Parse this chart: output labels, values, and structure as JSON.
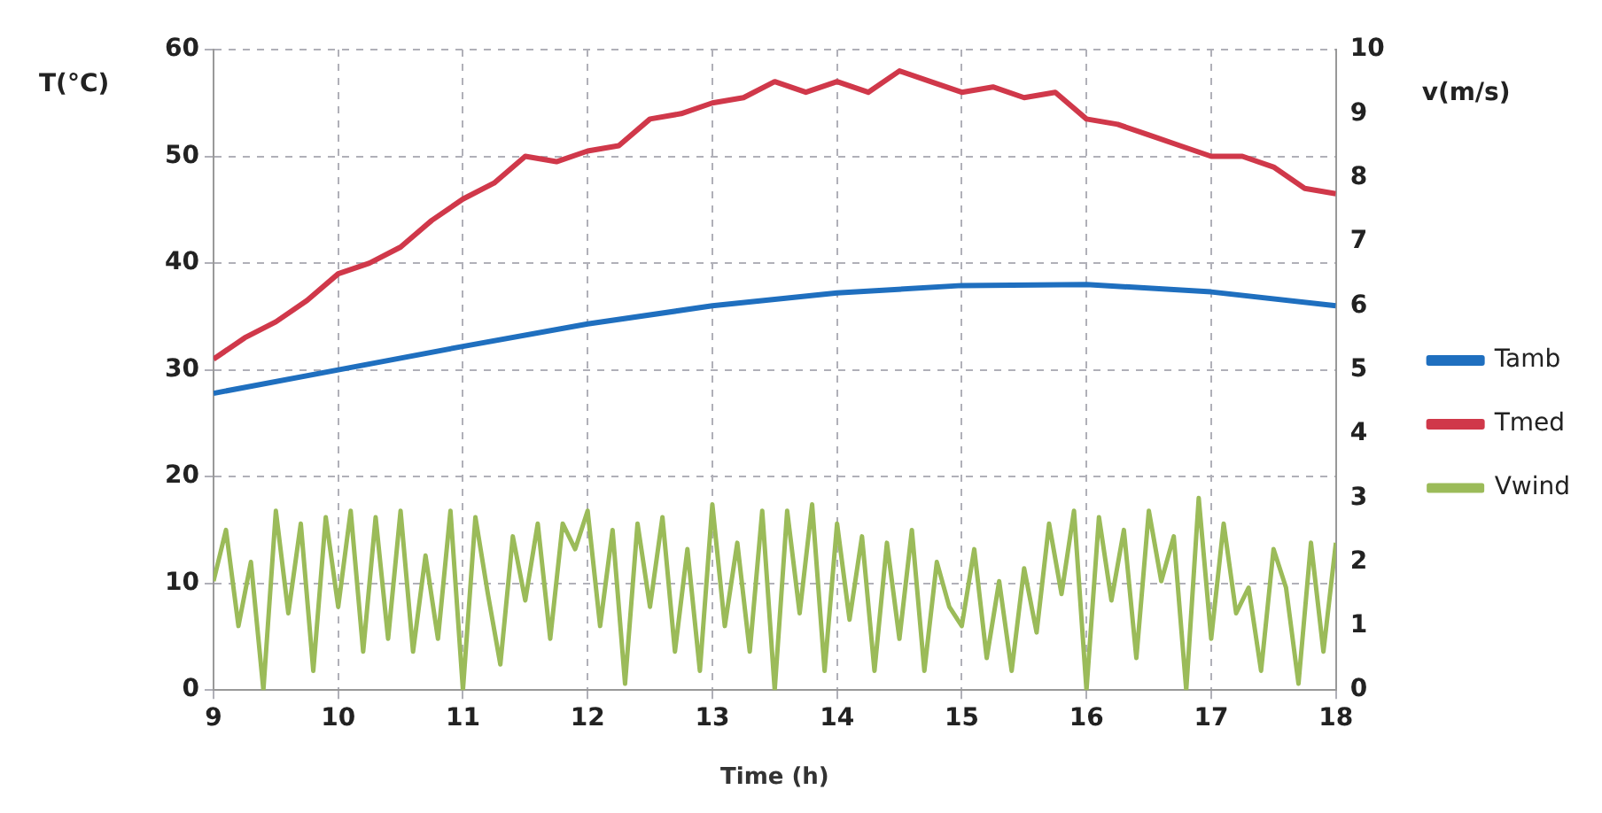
{
  "chart_data": {
    "type": "line",
    "xlabel": "Time (h)",
    "ylabel": "T(°C)",
    "y2label": "v(m/s)",
    "xlim": [
      9,
      18
    ],
    "xticks": [
      9,
      10,
      11,
      12,
      13,
      14,
      15,
      16,
      17,
      18
    ],
    "ylim": [
      0,
      60
    ],
    "yticks": [
      0,
      10,
      20,
      30,
      40,
      50,
      60
    ],
    "y2lim": [
      0,
      10
    ],
    "y2ticks": [
      0,
      1,
      2,
      3,
      4,
      5,
      6,
      7,
      8,
      9,
      10
    ],
    "grid": true,
    "legend": "right",
    "marker": "none",
    "line_style": "solid",
    "series": [
      {
        "name": "Tamb",
        "color": "#1f6fbf",
        "x": [
          9,
          10,
          11,
          12,
          13,
          14,
          15,
          16,
          17,
          18
        ],
        "values": [
          27.8,
          30,
          32.2,
          34.3,
          36,
          37.2,
          37.9,
          38,
          37.3,
          36
        ]
      },
      {
        "name": "Tmed",
        "color": "#d0384a",
        "x": [
          9,
          9.25,
          9.5,
          9.75,
          10,
          10.25,
          10.5,
          10.75,
          11,
          11.25,
          11.5,
          11.75,
          12,
          12.25,
          12.5,
          12.75,
          13,
          13.25,
          13.5,
          13.75,
          14,
          14.25,
          14.5,
          14.75,
          15,
          15.25,
          15.5,
          15.75,
          16,
          16.25,
          16.5,
          16.75,
          17,
          17.25,
          17.5,
          17.75,
          18
        ],
        "values": [
          31,
          33,
          34.5,
          36.5,
          39,
          40,
          41.5,
          44,
          46,
          47.5,
          50,
          49.5,
          50.5,
          51,
          53.5,
          54,
          55,
          55.5,
          57,
          56,
          57,
          56,
          58,
          57,
          56,
          56.5,
          55.5,
          56,
          53.5,
          53,
          52,
          51,
          50,
          50,
          49,
          47,
          46.5
        ]
      },
      {
        "name": "Vwind",
        "color": "#9bbb59",
        "axis": "y2",
        "x": [
          9,
          9.1,
          9.2,
          9.3,
          9.4,
          9.5,
          9.6,
          9.7,
          9.8,
          9.9,
          10,
          10.1,
          10.2,
          10.3,
          10.4,
          10.5,
          10.6,
          10.7,
          10.8,
          10.9,
          11,
          11.1,
          11.2,
          11.3,
          11.4,
          11.5,
          11.6,
          11.7,
          11.8,
          11.9,
          12,
          12.1,
          12.2,
          12.3,
          12.4,
          12.5,
          12.6,
          12.7,
          12.8,
          12.9,
          13,
          13.1,
          13.2,
          13.3,
          13.4,
          13.5,
          13.6,
          13.7,
          13.8,
          13.9,
          14,
          14.1,
          14.2,
          14.3,
          14.4,
          14.5,
          14.6,
          14.7,
          14.8,
          14.9,
          15,
          15.1,
          15.2,
          15.3,
          15.4,
          15.5,
          15.6,
          15.7,
          15.8,
          15.9,
          16,
          16.1,
          16.2,
          16.3,
          16.4,
          16.5,
          16.6,
          16.7,
          16.8,
          16.9,
          17,
          17.1,
          17.2,
          17.3,
          17.4,
          17.5,
          17.6,
          17.7,
          17.8,
          17.9,
          18
        ],
        "values": [
          1.7,
          2.5,
          1,
          2,
          0,
          2.8,
          1.2,
          2.6,
          0.3,
          2.7,
          1.3,
          2.8,
          0.6,
          2.7,
          0.8,
          2.8,
          0.6,
          2.1,
          0.8,
          2.8,
          0,
          2.7,
          1.5,
          0.4,
          2.4,
          1.4,
          2.6,
          0.8,
          2.6,
          2.2,
          2.8,
          1,
          2.5,
          0.1,
          2.6,
          1.3,
          2.7,
          0.6,
          2.2,
          0.3,
          2.9,
          1,
          2.3,
          0.6,
          2.8,
          0,
          2.8,
          1.2,
          2.9,
          0.3,
          2.6,
          1.1,
          2.4,
          0.3,
          2.3,
          0.8,
          2.5,
          0.3,
          2,
          1.3,
          1,
          2.2,
          0.5,
          1.7,
          0.3,
          1.9,
          0.9,
          2.6,
          1.5,
          2.8,
          0,
          2.7,
          1.4,
          2.5,
          0.5,
          2.8,
          1.7,
          2.4,
          0,
          3,
          0.8,
          2.6,
          1.2,
          1.6,
          0.3,
          2.2,
          1.6,
          0.1,
          2.3,
          0.6,
          2.3
        ]
      }
    ]
  }
}
